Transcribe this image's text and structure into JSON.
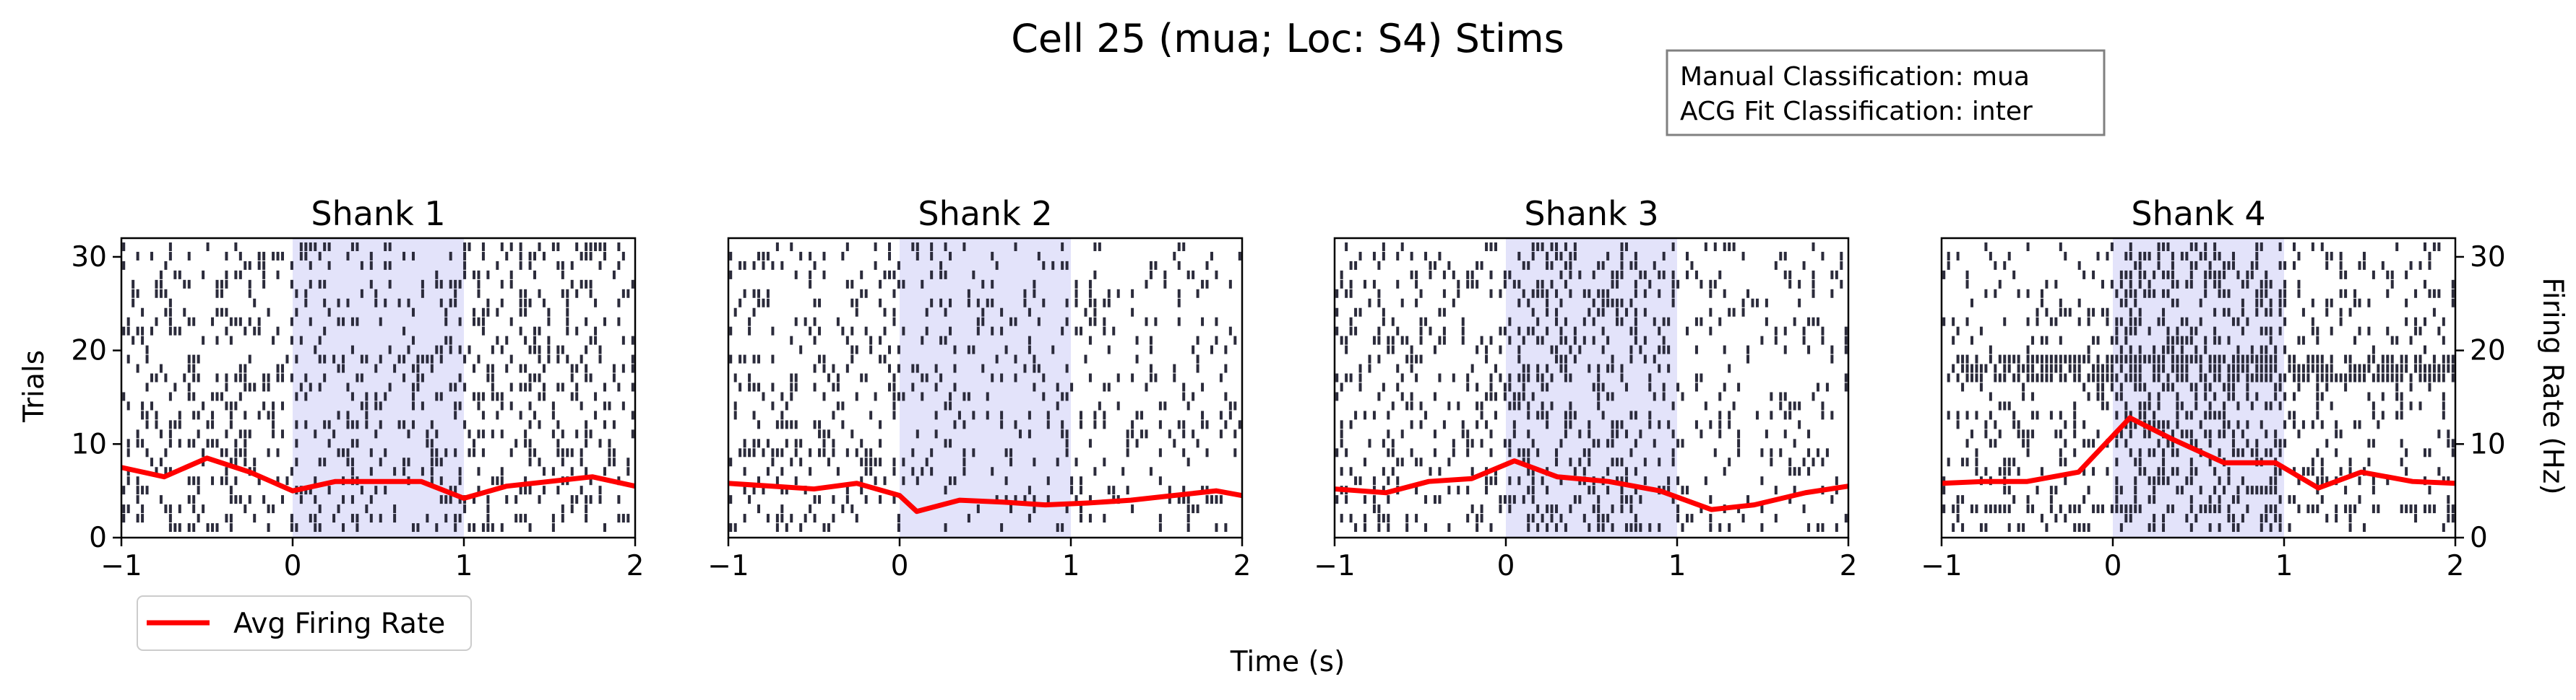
{
  "chart_data": {
    "type": "raster",
    "title": "Cell 25 (mua; Loc: S4) Stims",
    "xlabel": "Time (s)",
    "ylabel_left": "Trials",
    "ylabel_right": "Firing Rate (Hz)",
    "xlim": [
      -1,
      2
    ],
    "ylim": [
      0,
      32
    ],
    "xticks": [
      "−1",
      "0",
      "1",
      "2"
    ],
    "yticks_left": [
      "0",
      "10",
      "20",
      "30"
    ],
    "yticks_right": [
      "0",
      "10",
      "20",
      "30"
    ],
    "stim_window": [
      0,
      1
    ],
    "legend": {
      "label": "Avg Firing Rate",
      "color": "#ff0000"
    },
    "annotation": {
      "line1": "Manual Classification: mua",
      "line2": "ACG Fit Classification: inter"
    },
    "colors": {
      "spike": "#2b2b3b",
      "stim": "#e3e3fa",
      "rate": "#ff0000"
    },
    "panels": [
      {
        "title": "Shank 1",
        "density_pre": 0.25,
        "density_stim": 0.22,
        "density_post": 0.24,
        "rate_x": [
          -1.0,
          -0.75,
          -0.5,
          -0.25,
          0.0,
          0.25,
          0.5,
          0.75,
          1.0,
          1.25,
          1.5,
          1.75,
          2.0
        ],
        "rate_y": [
          7.5,
          6.5,
          8.5,
          7.0,
          5.0,
          6.0,
          6.0,
          6.0,
          4.2,
          5.5,
          6.0,
          6.5,
          5.5
        ]
      },
      {
        "title": "Shank 2",
        "density_pre": 0.22,
        "density_stim": 0.14,
        "density_post": 0.16,
        "rate_x": [
          -1.0,
          -0.75,
          -0.5,
          -0.25,
          0.0,
          0.1,
          0.35,
          0.6,
          0.85,
          1.1,
          1.35,
          1.6,
          1.85,
          2.0
        ],
        "rate_y": [
          5.8,
          5.5,
          5.2,
          5.8,
          4.5,
          2.8,
          4.0,
          3.8,
          3.5,
          3.7,
          4.0,
          4.5,
          5.0,
          4.5
        ]
      },
      {
        "title": "Shank 3",
        "density_pre": 0.22,
        "density_stim": 0.28,
        "density_post": 0.15,
        "rate_x": [
          -1.0,
          -0.7,
          -0.45,
          -0.2,
          0.05,
          0.3,
          0.6,
          0.9,
          1.2,
          1.45,
          1.75,
          2.0
        ],
        "rate_y": [
          5.2,
          4.8,
          6.0,
          6.3,
          8.2,
          6.5,
          6.0,
          5.0,
          3.0,
          3.5,
          4.8,
          5.5
        ]
      },
      {
        "title": "Shank 4",
        "density_pre": 0.2,
        "density_stim": 0.38,
        "density_post": 0.2,
        "rate_x": [
          -1.0,
          -0.75,
          -0.5,
          -0.2,
          0.1,
          0.35,
          0.65,
          0.95,
          1.2,
          1.45,
          1.75,
          2.0
        ],
        "rate_y": [
          5.8,
          6.0,
          6.0,
          7.0,
          12.8,
          10.5,
          8.0,
          8.0,
          5.3,
          7.0,
          6.0,
          5.8
        ]
      }
    ]
  }
}
